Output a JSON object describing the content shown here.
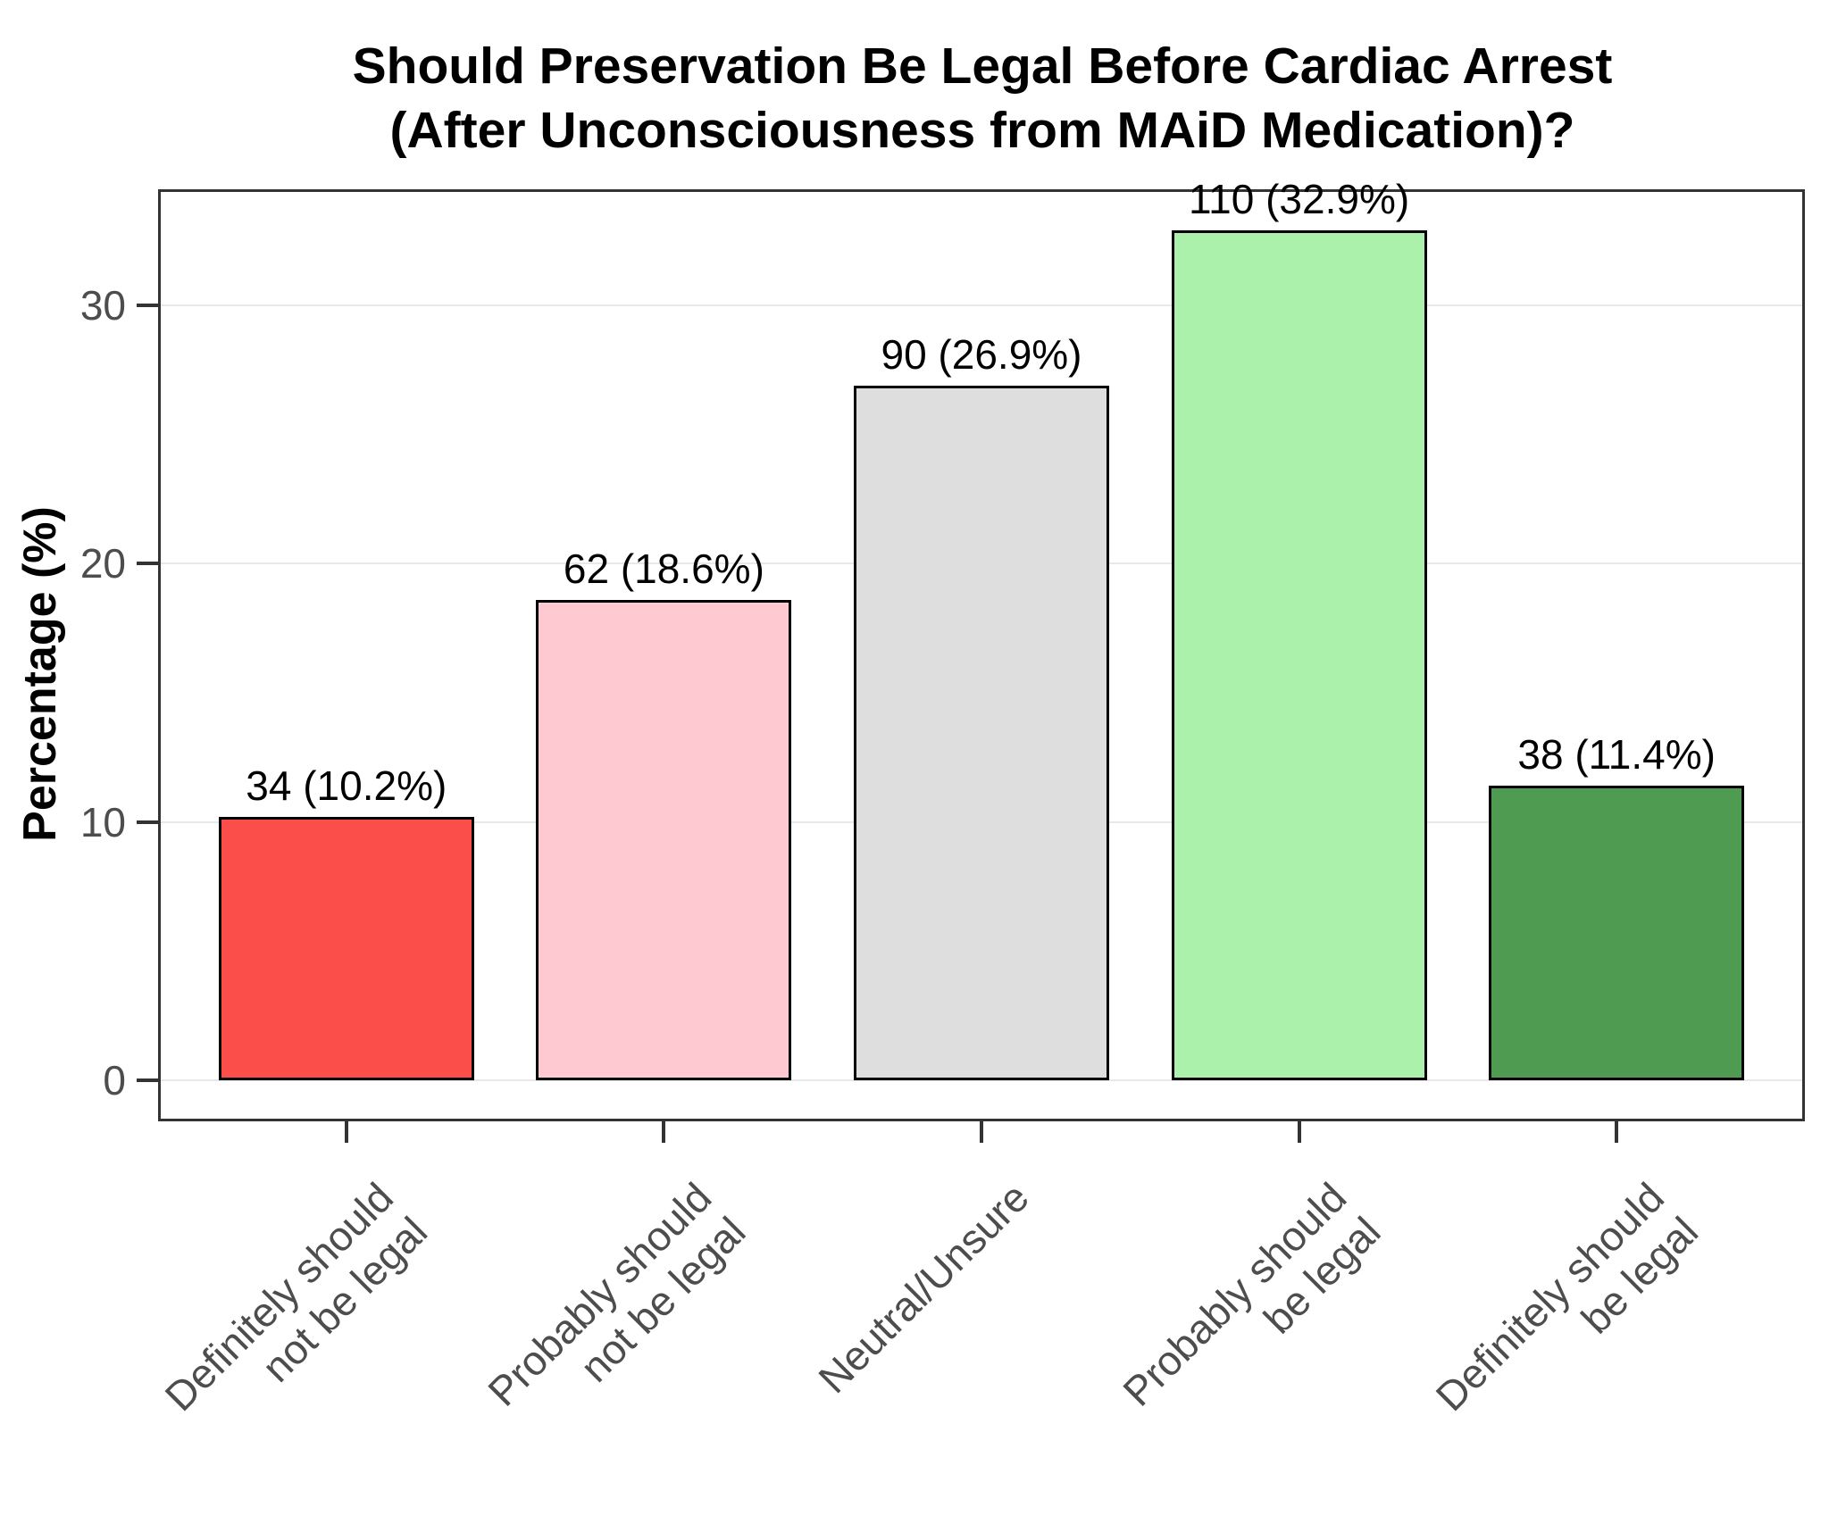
{
  "title": {
    "line1": "Should Preservation Be Legal Before Cardiac Arrest",
    "line2": "(After Unconsciousness from MAiD Medication)?"
  },
  "y_axis": {
    "label": "Percentage (%)"
  },
  "chart_data": {
    "type": "bar",
    "title": "Should Preservation Be Legal Before Cardiac Arrest (After Unconsciousness from MAiD Medication)?",
    "xlabel": "",
    "ylabel": "Percentage (%)",
    "categories": [
      "Definitely should\nnot be legal",
      "Probably should\nnot be legal",
      "Neutral/Unsure",
      "Probably should\nbe legal",
      "Definitely should\nbe legal"
    ],
    "counts": [
      34,
      62,
      90,
      110,
      38
    ],
    "values": [
      10.2,
      18.6,
      26.9,
      32.9,
      11.4
    ],
    "bar_labels": [
      "34 (10.2%)",
      "62 (18.6%)",
      "90 (26.9%)",
      "110 (32.9%)",
      "38 (11.4%)"
    ],
    "bar_colors": [
      "#FB4D49",
      "#FFC9D1",
      "#DEDEDE",
      "#ABF0AB",
      "#4F9B51"
    ],
    "bar_outline_color": "#000000",
    "y_ticks": [
      0,
      10,
      20,
      30
    ],
    "ylim": [
      -1.6,
      34.5
    ],
    "grid": "horizontal-major",
    "legend": "none"
  },
  "style": {
    "axis_text_color": "#4D4D4D",
    "panel_border_color": "#333333",
    "gridline_color": "#E8E8E8",
    "title_color": "#000000",
    "background": "#FFFFFF"
  }
}
